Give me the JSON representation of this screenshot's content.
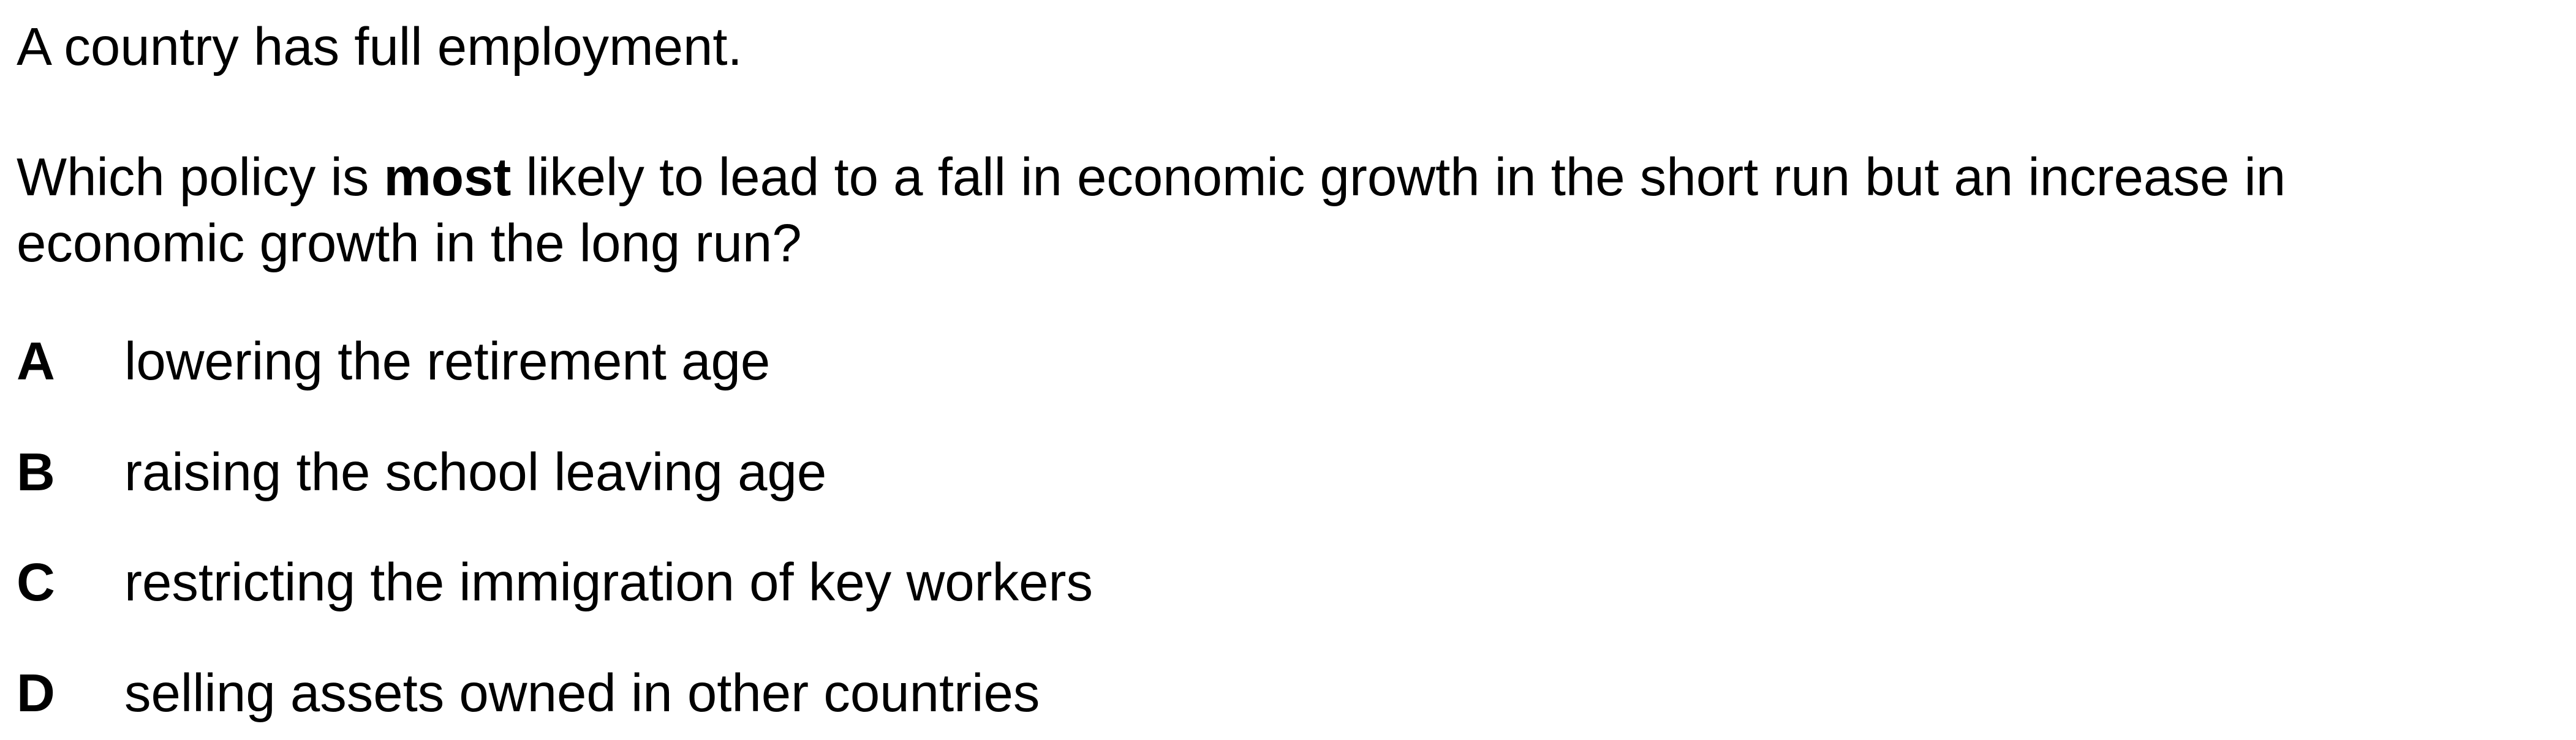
{
  "question": {
    "intro": "A country has full employment.",
    "stem_line1_before": "Which policy is ",
    "stem_emphasis": "most",
    "stem_line1_after": " likely to lead to a fall in economic growth in the short run but an increase in",
    "stem_line2": "economic growth in the long run?"
  },
  "options": [
    {
      "letter": "A",
      "text": "lowering the retirement age"
    },
    {
      "letter": "B",
      "text": "raising the school leaving age"
    },
    {
      "letter": "C",
      "text": "restricting the immigration of key workers"
    },
    {
      "letter": "D",
      "text": "selling assets owned in other countries"
    }
  ]
}
